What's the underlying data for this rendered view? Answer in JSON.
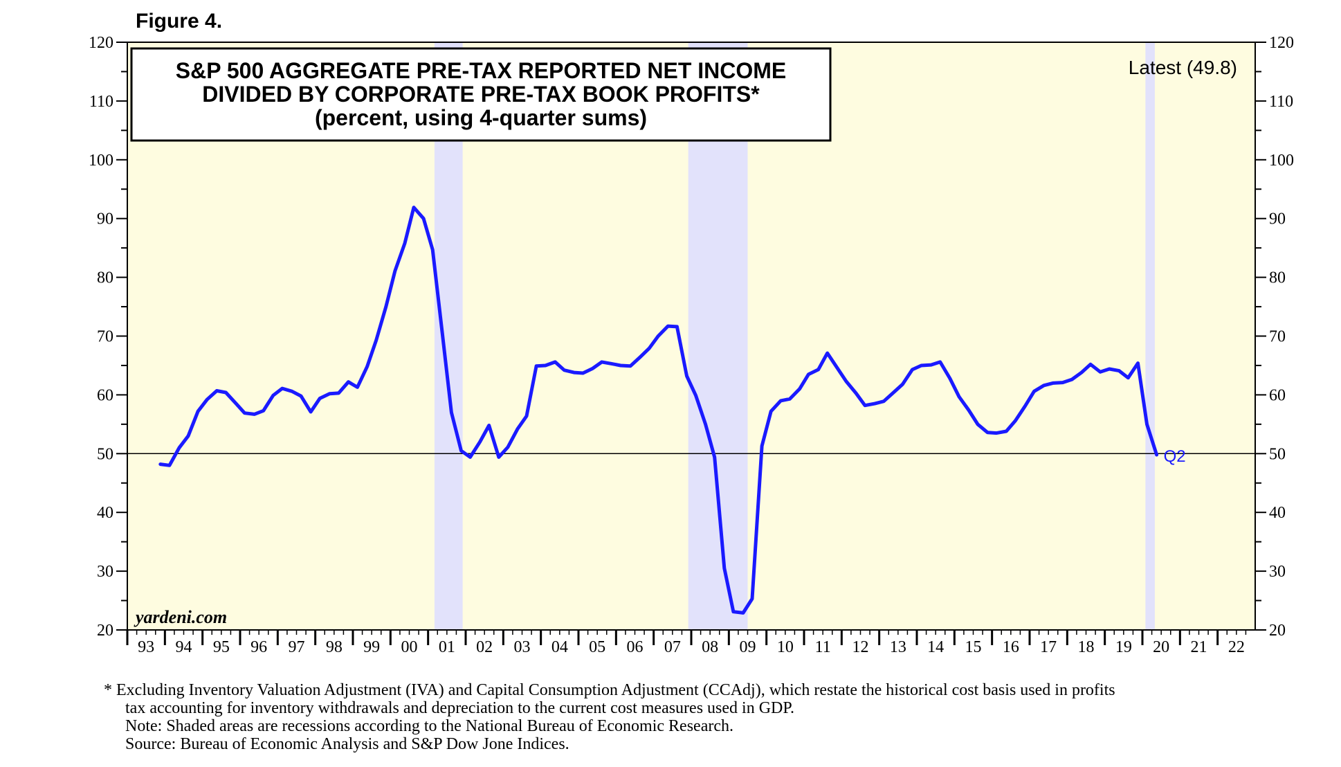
{
  "figure_label": "Figure 4.",
  "colors": {
    "plot_background": "#fefce0",
    "recession_shade": "#e2e2fb",
    "series_line": "#1a1aff",
    "axis": "#000000"
  },
  "chart_data": {
    "type": "line",
    "title_lines": [
      "S&P 500 AGGREGATE PRE-TAX REPORTED NET INCOME",
      "DIVIDED BY CORPORATE PRE-TAX BOOK PROFITS*",
      "(percent, using 4-quarter sums)"
    ],
    "ylim": [
      20,
      120
    ],
    "xlim": [
      1993,
      2023
    ],
    "y_ticks": [
      20,
      30,
      40,
      50,
      60,
      70,
      80,
      90,
      100,
      110,
      120
    ],
    "y_tick_labels": [
      "20",
      "30",
      "40",
      "50",
      "60",
      "70",
      "80",
      "90",
      "100",
      "110",
      "120"
    ],
    "x_year_starts": [
      1993,
      1994,
      1995,
      1996,
      1997,
      1998,
      1999,
      2000,
      2001,
      2002,
      2003,
      2004,
      2005,
      2006,
      2007,
      2008,
      2009,
      2010,
      2011,
      2012,
      2013,
      2014,
      2015,
      2016,
      2017,
      2018,
      2019,
      2020,
      2021,
      2022
    ],
    "x_tick_labels": [
      "93",
      "94",
      "95",
      "96",
      "97",
      "98",
      "99",
      "00",
      "01",
      "02",
      "03",
      "04",
      "05",
      "06",
      "07",
      "08",
      "09",
      "10",
      "11",
      "12",
      "13",
      "14",
      "15",
      "16",
      "17",
      "18",
      "19",
      "20",
      "21",
      "22"
    ],
    "reference_line": 50,
    "recessions": [
      [
        2001.17,
        2001.92
      ],
      [
        2007.92,
        2009.5
      ],
      [
        2020.08,
        2020.33
      ]
    ],
    "annotations": {
      "latest": "Latest (49.8)",
      "last_point": "Q2",
      "source": "yardeni.com"
    },
    "series": [
      {
        "name": "S&P 500 pre-tax net income / corporate pre-tax book profits",
        "x": [
          1993.88,
          1994.12,
          1994.38,
          1994.62,
          1994.88,
          1995.12,
          1995.38,
          1995.62,
          1995.88,
          1996.12,
          1996.38,
          1996.62,
          1996.88,
          1997.12,
          1997.38,
          1997.62,
          1997.88,
          1998.12,
          1998.38,
          1998.62,
          1998.88,
          1999.12,
          1999.38,
          1999.62,
          1999.88,
          2000.12,
          2000.38,
          2000.62,
          2000.88,
          2001.12,
          2001.38,
          2001.62,
          2001.88,
          2002.12,
          2002.38,
          2002.62,
          2002.88,
          2003.12,
          2003.38,
          2003.62,
          2003.88,
          2004.12,
          2004.38,
          2004.62,
          2004.88,
          2005.12,
          2005.38,
          2005.62,
          2005.88,
          2006.12,
          2006.38,
          2006.62,
          2006.88,
          2007.12,
          2007.38,
          2007.62,
          2007.88,
          2008.12,
          2008.38,
          2008.62,
          2008.88,
          2009.12,
          2009.38,
          2009.62,
          2009.88,
          2010.12,
          2010.38,
          2010.62,
          2010.88,
          2011.12,
          2011.38,
          2011.62,
          2011.88,
          2012.12,
          2012.38,
          2012.62,
          2012.88,
          2013.12,
          2013.38,
          2013.62,
          2013.88,
          2014.12,
          2014.38,
          2014.62,
          2014.88,
          2015.12,
          2015.38,
          2015.62,
          2015.88,
          2016.12,
          2016.38,
          2016.62,
          2016.88,
          2017.12,
          2017.38,
          2017.62,
          2017.88,
          2018.12,
          2018.38,
          2018.62,
          2018.88,
          2019.12,
          2019.38,
          2019.62,
          2019.88,
          2020.12,
          2020.38
        ],
        "values": [
          48.2,
          48.0,
          51.0,
          53.0,
          57.2,
          59.2,
          60.7,
          60.4,
          58.6,
          56.9,
          56.7,
          57.3,
          59.9,
          61.1,
          60.6,
          59.8,
          57.1,
          59.4,
          60.2,
          60.3,
          62.2,
          61.3,
          64.8,
          69.3,
          75.0,
          81.1,
          85.8,
          91.9,
          90.0,
          84.7,
          70.4,
          57.0,
          50.5,
          49.4,
          52.0,
          54.8,
          49.4,
          51.1,
          54.2,
          56.4,
          64.9,
          65.0,
          65.6,
          64.2,
          63.8,
          63.7,
          64.5,
          65.6,
          65.3,
          65.0,
          64.9,
          66.3,
          67.9,
          70.0,
          71.7,
          71.6,
          63.2,
          59.9,
          55.0,
          49.4,
          30.5,
          23.1,
          22.9,
          25.3,
          51.3,
          57.2,
          59.0,
          59.3,
          61.0,
          63.5,
          64.3,
          67.1,
          64.6,
          62.3,
          60.3,
          58.2,
          58.5,
          58.9,
          60.4,
          61.8,
          64.3,
          65.0,
          65.1,
          65.6,
          62.8,
          59.7,
          57.4,
          55.0,
          53.6,
          53.5,
          53.8,
          55.6,
          58.1,
          60.6,
          61.6,
          62.0,
          62.1,
          62.6,
          63.8,
          65.2,
          63.9,
          64.4,
          64.1,
          62.9,
          65.4,
          55.0,
          49.8
        ]
      }
    ]
  },
  "footnotes": [
    "*  Excluding Inventory Valuation Adjustment (IVA) and Capital Consumption Adjustment (CCAdj), which restate the historical cost basis used in profits",
    "tax accounting for inventory withdrawals and depreciation to the current cost measures used in GDP.",
    "Note: Shaded areas are recessions according to the National Bureau of Economic Research.",
    "Source: Bureau of Economic Analysis and S&P Dow Jone Indices."
  ]
}
